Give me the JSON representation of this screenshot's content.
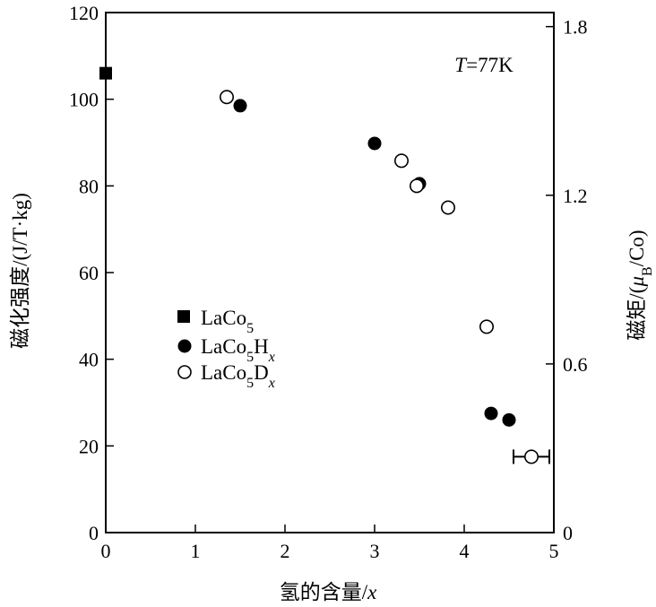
{
  "chart_data": {
    "type": "scatter",
    "title": "",
    "xlabel": "氢的含量/x",
    "ylabel_left": "磁化强度/(J/T·kg)",
    "ylabel_right": "磁矩/(μB/Co)",
    "xlim": [
      0,
      5
    ],
    "ylim_left": [
      0,
      120
    ],
    "ylim_right": [
      0,
      1.85
    ],
    "x_ticks": [
      "0",
      "1",
      "2",
      "3",
      "4",
      "5"
    ],
    "y_left_ticks": [
      "0",
      "20",
      "40",
      "60",
      "80",
      "100",
      "120"
    ],
    "y_right_ticks": [
      "0",
      "0.6",
      "1.2",
      "1.8"
    ],
    "annotation": "T=77K",
    "grid": false,
    "legend_placement": "center-left",
    "series": [
      {
        "name": "LaCo5",
        "marker": "filled-square",
        "points": [
          {
            "x": 0.0,
            "y": 106
          }
        ]
      },
      {
        "name": "LaCo5Hx",
        "marker": "filled-circle",
        "points": [
          {
            "x": 1.5,
            "y": 98.5
          },
          {
            "x": 3.0,
            "y": 89.8
          },
          {
            "x": 3.5,
            "y": 80.5
          },
          {
            "x": 4.3,
            "y": 27.5
          },
          {
            "x": 4.5,
            "y": 26.0
          }
        ]
      },
      {
        "name": "LaCo5Dx",
        "marker": "open-circle",
        "points": [
          {
            "x": 1.35,
            "y": 100.5
          },
          {
            "x": 3.3,
            "y": 85.8
          },
          {
            "x": 3.47,
            "y": 80.0
          },
          {
            "x": 3.82,
            "y": 75.0
          },
          {
            "x": 4.25,
            "y": 47.5
          },
          {
            "x": 4.75,
            "y": 17.5,
            "xerr": 0.2
          }
        ]
      }
    ]
  }
}
